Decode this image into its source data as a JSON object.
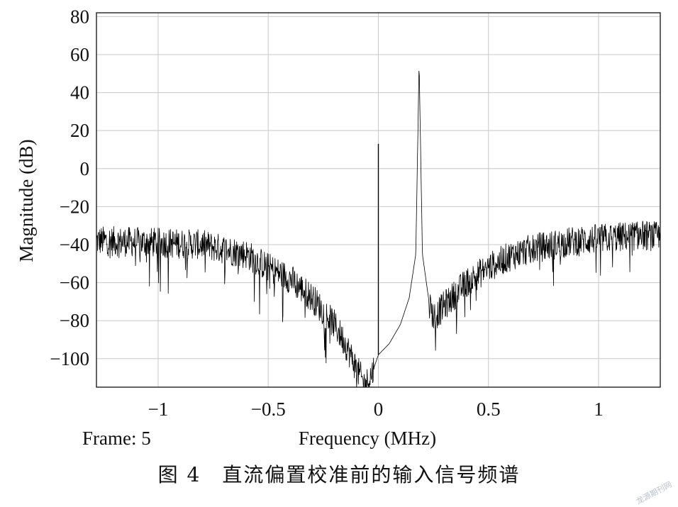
{
  "chart_data": {
    "type": "line",
    "xlabel": "Frequency (MHz)",
    "ylabel": "Magnitude (dB)",
    "frame_label": "Frame: 5",
    "xlim": [
      -1.28,
      1.28
    ],
    "ylim": [
      -115,
      82
    ],
    "xticks": [
      -1,
      -0.5,
      0,
      0.5,
      1
    ],
    "xtick_labels": [
      "−1",
      "−0.5",
      "0",
      "0.5",
      "1"
    ],
    "yticks": [
      80,
      60,
      40,
      20,
      0,
      -20,
      -40,
      -60,
      -80,
      -100
    ],
    "ytick_labels": [
      "80",
      "60",
      "40",
      "20",
      "0",
      "−20",
      "−40",
      "−60",
      "−80",
      "−100"
    ],
    "grid": true,
    "series": [
      {
        "color": "#000000",
        "envelope": {
          "x": [
            -1.28,
            -1.0,
            -0.8,
            -0.6,
            -0.5,
            -0.4,
            -0.3,
            -0.2,
            -0.15,
            -0.1,
            -0.06,
            -0.03,
            0.0,
            0.05,
            0.1,
            0.14,
            0.17,
            0.185,
            0.2,
            0.23,
            0.25,
            0.27,
            0.3,
            0.4,
            0.5,
            0.6,
            0.7,
            0.8,
            0.9,
            1.0,
            1.1,
            1.2,
            1.28
          ],
          "y": [
            -38,
            -39,
            -40,
            -45,
            -52,
            -58,
            -68,
            -82,
            -92,
            -105,
            -114,
            -108,
            -98,
            -92,
            -82,
            -68,
            -45,
            56,
            -45,
            -70,
            -78,
            -76,
            -72,
            -60,
            -52,
            -46,
            -42,
            -40,
            -38,
            -37,
            -36,
            -35,
            -36
          ]
        },
        "spikes": [
          {
            "x": 0.0,
            "y": 13
          },
          {
            "x": 0.185,
            "y": 56
          }
        ]
      }
    ]
  },
  "caption": "图 4　直流偏置校准前的输入信号频谱",
  "watermark": "龙源期刊网"
}
